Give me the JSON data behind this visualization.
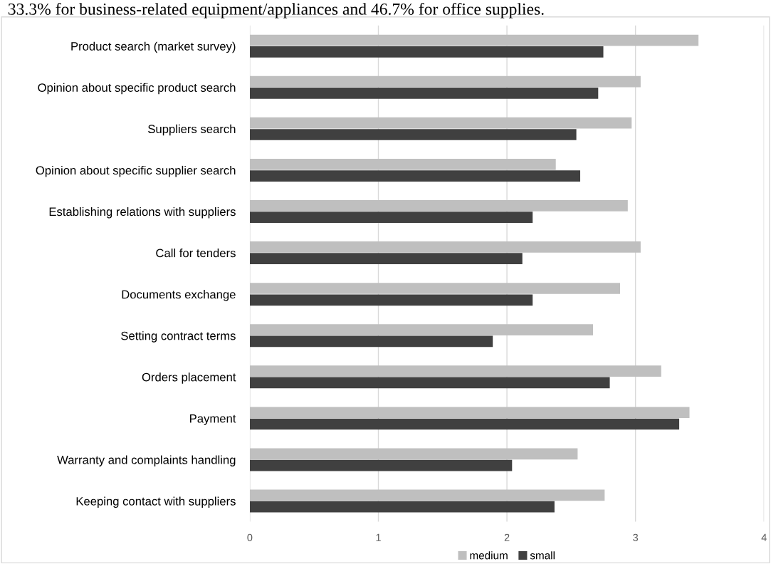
{
  "chart_data": {
    "type": "bar",
    "orientation": "horizontal",
    "categories": [
      "Product search (market survey)",
      "Opinion about specific product search",
      "Suppliers search",
      "Opinion about specific supplier search",
      "Establishing relations with suppliers",
      "Call for tenders",
      "Documents exchange",
      "Setting contract terms",
      "Orders placement",
      "Payment",
      "Warranty and complaints handling",
      "Keeping contact with suppliers"
    ],
    "series": [
      {
        "name": "medium",
        "color": "#bfbfbf",
        "values": [
          3.49,
          3.04,
          2.97,
          2.38,
          2.94,
          3.04,
          2.88,
          2.67,
          3.2,
          3.42,
          2.55,
          2.76
        ]
      },
      {
        "name": "small",
        "color": "#404040",
        "values": [
          2.75,
          2.71,
          2.54,
          2.57,
          2.2,
          2.12,
          2.2,
          1.89,
          2.8,
          3.34,
          2.04,
          2.37
        ]
      }
    ],
    "xlim": [
      0,
      4
    ],
    "xticks": [
      0,
      1,
      2,
      3,
      4
    ],
    "grid": "x",
    "legend": "bottom",
    "annotations": [
      "33.3% for business-related equipment/appliances and 46.7% for office supplies."
    ]
  }
}
